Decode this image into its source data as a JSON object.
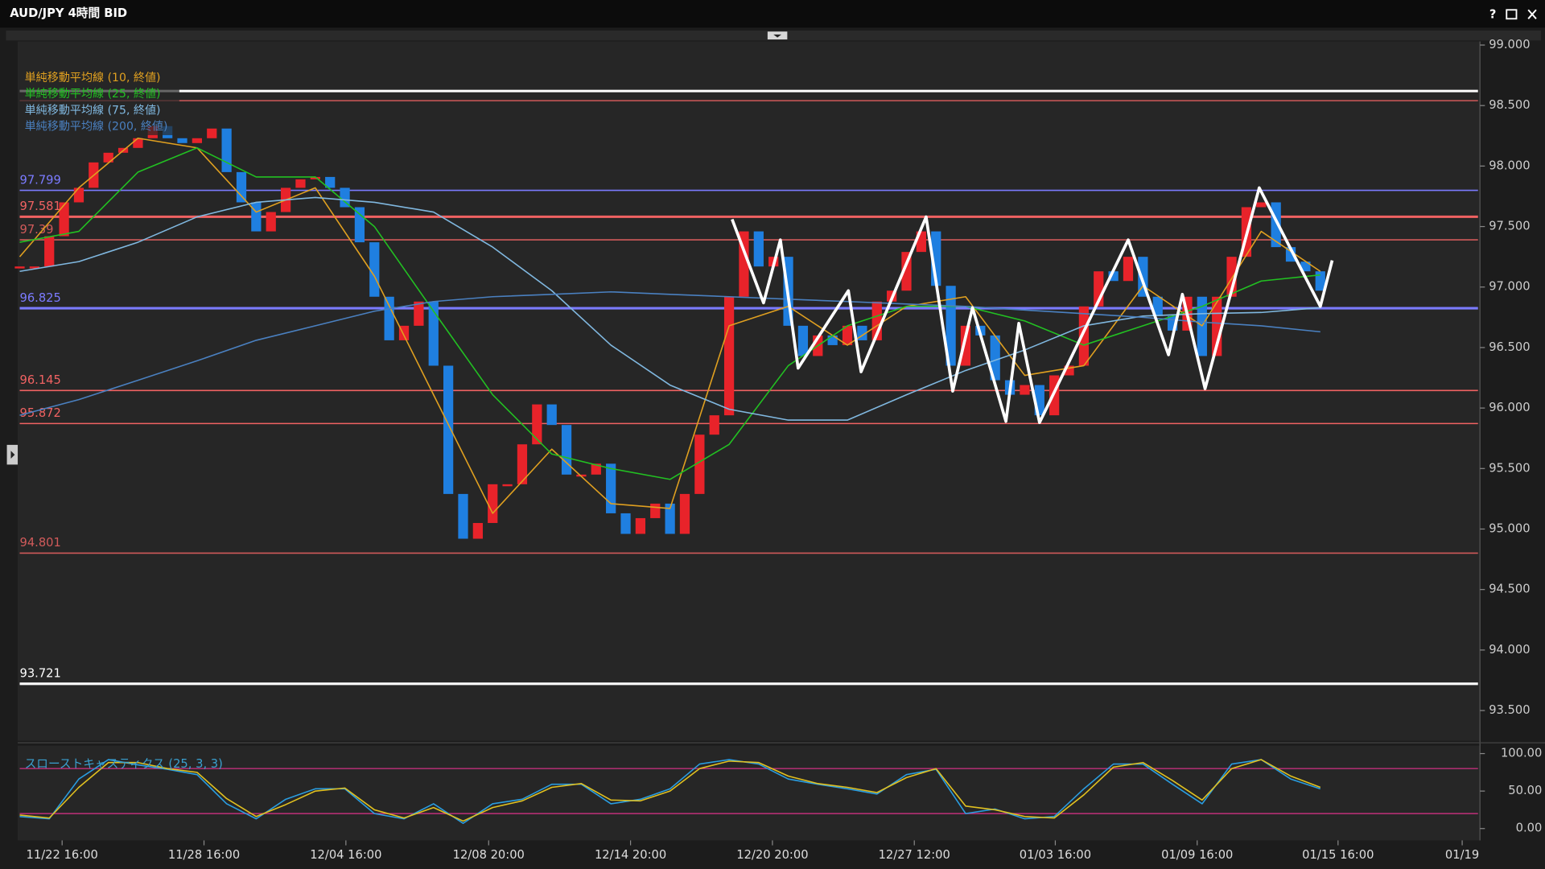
{
  "window": {
    "title": "AUD/JPY 4時間 BID",
    "help": "?"
  },
  "chart_data": [
    {
      "type": "candlestick",
      "values": [
        97.17,
        97.17,
        97.42,
        97.7,
        97.82,
        98.03,
        98.11,
        98.15,
        98.23,
        98.33,
        98.23,
        98.19,
        98.23,
        98.31,
        97.95,
        97.7,
        97.46,
        97.62,
        97.82,
        97.89,
        97.91,
        97.82,
        97.66,
        97.37,
        96.92,
        96.56,
        96.68,
        96.88,
        96.35,
        95.29,
        94.92,
        95.05,
        95.37,
        95.37,
        95.7,
        96.03,
        95.86,
        95.45,
        95.45,
        95.54,
        95.13,
        94.96,
        95.09,
        95.21,
        94.96,
        95.29,
        95.78,
        95.94,
        96.92,
        97.46,
        97.17,
        97.25,
        96.68,
        96.43,
        96.6,
        96.52,
        96.68,
        96.56,
        96.88,
        96.97,
        97.29,
        97.46,
        97.01,
        96.35,
        96.68,
        96.6,
        96.23,
        96.11,
        96.19,
        95.94,
        96.27,
        96.35,
        96.84,
        97.13,
        97.05,
        97.25,
        96.92,
        96.76,
        96.64,
        96.92,
        96.43,
        96.92,
        97.25,
        97.66,
        97.7,
        97.33,
        97.21,
        97.13,
        96.97
      ],
      "up_color": "#e8232a",
      "down_color": "#1f7fe0",
      "xlim": [
        0,
        98.67
      ],
      "ylim": [
        93.25,
        99.03
      ],
      "xticks": [
        {
          "value": 2.87,
          "label": "11/22 16:00"
        },
        {
          "value": 12.47,
          "label": "11/28 16:00"
        },
        {
          "value": 22.07,
          "label": "12/04 16:00"
        },
        {
          "value": 31.73,
          "label": "12/08 20:00"
        },
        {
          "value": 41.33,
          "label": "12/14 20:00"
        },
        {
          "value": 50.93,
          "label": "12/20 20:00"
        },
        {
          "value": 60.53,
          "label": "12/27 12:00"
        },
        {
          "value": 70.07,
          "label": "01/03 16:00"
        },
        {
          "value": 79.67,
          "label": "01/09 16:00"
        },
        {
          "value": 89.2,
          "label": "01/15 16:00"
        },
        {
          "value": 97.6,
          "label": "01/19"
        }
      ],
      "yticks": [
        {
          "value": 93.5,
          "label": "93.500"
        },
        {
          "value": 94,
          "label": "94.000"
        },
        {
          "value": 94.5,
          "label": "94.500"
        },
        {
          "value": 95,
          "label": "95.000"
        },
        {
          "value": 95.5,
          "label": "95.500"
        },
        {
          "value": 96,
          "label": "96.000"
        },
        {
          "value": 96.5,
          "label": "96.500"
        },
        {
          "value": 97,
          "label": "97.000"
        },
        {
          "value": 97.5,
          "label": "97.500"
        },
        {
          "value": 98,
          "label": "98.000"
        },
        {
          "value": 98.5,
          "label": "98.500"
        },
        {
          "value": 99,
          "label": "99.000"
        }
      ],
      "series": [
        {
          "name": "単純移動平均線 (10, 終値)",
          "color": "#e0a020",
          "x": [
            0,
            4,
            8,
            12,
            16,
            20,
            24,
            28,
            32,
            36,
            40,
            44,
            48,
            52,
            56,
            60,
            64,
            68,
            72,
            76,
            80,
            84,
            88
          ],
          "values": [
            97.25,
            97.82,
            98.23,
            98.15,
            97.62,
            97.82,
            97.09,
            96.11,
            95.13,
            95.66,
            95.21,
            95.17,
            96.68,
            96.84,
            96.52,
            96.84,
            96.92,
            96.27,
            96.35,
            97.01,
            96.68,
            97.46,
            97.13
          ]
        },
        {
          "name": "単純移動平均線 (25, 終値)",
          "color": "#22c022",
          "x": [
            0,
            4,
            8,
            12,
            16,
            20,
            24,
            28,
            32,
            36,
            40,
            44,
            48,
            52,
            56,
            60,
            64,
            68,
            72,
            76,
            80,
            84,
            88
          ],
          "values": [
            97.37,
            97.46,
            97.95,
            98.15,
            97.91,
            97.91,
            97.5,
            96.8,
            96.11,
            95.62,
            95.5,
            95.41,
            95.7,
            96.35,
            96.68,
            96.84,
            96.84,
            96.72,
            96.52,
            96.68,
            96.84,
            97.05,
            97.1
          ]
        },
        {
          "name": "単純移動平均線 (75, 終値)",
          "color": "#80b8e0",
          "x": [
            0,
            4,
            8,
            12,
            16,
            20,
            24,
            28,
            32,
            36,
            40,
            44,
            48,
            52,
            56,
            60,
            64,
            68,
            72,
            76,
            80,
            84,
            88
          ],
          "values": [
            97.13,
            97.21,
            97.37,
            97.58,
            97.7,
            97.74,
            97.7,
            97.62,
            97.33,
            96.97,
            96.52,
            96.19,
            95.99,
            95.9,
            95.9,
            96.11,
            96.31,
            96.48,
            96.68,
            96.76,
            96.78,
            96.79,
            96.83
          ]
        },
        {
          "name": "単純移動平均線 (200, 終値)",
          "color": "#4a80c0",
          "x": [
            0,
            4,
            8,
            12,
            16,
            20,
            24,
            28,
            32,
            36,
            40,
            44,
            48,
            52,
            56,
            60,
            64,
            68,
            72,
            76,
            80,
            84,
            88
          ],
          "values": [
            95.94,
            96.07,
            96.23,
            96.39,
            96.56,
            96.68,
            96.8,
            96.88,
            96.92,
            96.94,
            96.96,
            96.94,
            96.92,
            96.9,
            96.88,
            96.86,
            96.84,
            96.81,
            96.78,
            96.75,
            96.71,
            96.68,
            96.63
          ]
        }
      ],
      "zigzag": {
        "color": "#ffffff",
        "x": [
          48.2,
          50.33,
          51.47,
          52.67,
          56.07,
          56.93,
          61.33,
          63.13,
          64.47,
          66.73,
          67.6,
          69,
          75,
          77.73,
          78.67,
          80.2,
          83.87,
          88,
          88.8
        ],
        "values": [
          97.56,
          96.87,
          97.39,
          96.33,
          96.97,
          96.3,
          97.58,
          96.14,
          96.83,
          95.89,
          96.7,
          95.88,
          97.39,
          96.44,
          96.94,
          96.16,
          97.82,
          96.84,
          97.22
        ]
      },
      "levels": [
        {
          "value": 97.799,
          "color": "#7b7bff"
        },
        {
          "value": 97.581,
          "color": "#f06262"
        },
        {
          "value": 97.39,
          "color": "#d05a5a"
        },
        {
          "value": 96.825,
          "color": "#7b7bff"
        },
        {
          "value": 96.145,
          "color": "#f06262"
        },
        {
          "value": 95.872,
          "color": "#f06262"
        },
        {
          "value": 94.801,
          "color": "#d05a5a"
        },
        {
          "value": 93.721,
          "color": "#ffffff"
        }
      ],
      "lines": [
        {
          "value": 98.62,
          "color": "#ffffff"
        },
        {
          "value": 98.54,
          "color": "#d05a5a"
        }
      ]
    },
    {
      "type": "line",
      "title": "スローストキャスティクス (25, 3, 3)",
      "xlim": [
        0,
        98.67
      ],
      "ylim": [
        -15.8,
        110.5
      ],
      "yticks": [
        {
          "value": 0,
          "label": "0.00"
        },
        {
          "value": 50,
          "label": "50.00"
        },
        {
          "value": 100,
          "label": "100.00"
        }
      ],
      "levels": [
        {
          "value": 20,
          "color": "#c0307a"
        },
        {
          "value": 80,
          "color": "#c0307a"
        }
      ],
      "series": [
        {
          "color": "#2a9de0",
          "x": [
            0,
            2,
            4,
            6,
            8,
            10,
            12,
            14,
            16,
            18,
            20,
            22,
            24,
            26,
            28,
            30,
            32,
            34,
            36,
            38,
            40,
            42,
            44,
            46,
            48,
            50,
            52,
            54,
            56,
            58,
            60,
            62,
            64,
            66,
            68,
            70,
            72,
            74,
            76,
            78,
            80,
            82,
            84,
            86,
            88
          ],
          "values": [
            16,
            13,
            66,
            92,
            85,
            79,
            72,
            33,
            13,
            39,
            53,
            53,
            20,
            13,
            33,
            7,
            33,
            39,
            59,
            59,
            33,
            39,
            53,
            86,
            92,
            86,
            66,
            59,
            53,
            46,
            72,
            79,
            20,
            26,
            13,
            16,
            53,
            86,
            86,
            59,
            33,
            86,
            92,
            66,
            53
          ]
        },
        {
          "color": "#e0c020",
          "x": [
            0,
            2,
            4,
            6,
            8,
            10,
            12,
            14,
            16,
            18,
            20,
            22,
            24,
            26,
            28,
            30,
            32,
            34,
            36,
            38,
            40,
            42,
            44,
            46,
            48,
            50,
            52,
            54,
            56,
            58,
            60,
            62,
            64,
            66,
            68,
            70,
            72,
            74,
            76,
            78,
            80,
            82,
            84,
            86,
            88
          ],
          "values": [
            18,
            14,
            55,
            88,
            88,
            80,
            75,
            40,
            16,
            32,
            50,
            54,
            25,
            14,
            28,
            10,
            28,
            37,
            55,
            60,
            38,
            37,
            50,
            80,
            90,
            88,
            70,
            60,
            55,
            48,
            68,
            80,
            30,
            25,
            16,
            14,
            45,
            82,
            88,
            64,
            38,
            80,
            92,
            70,
            55
          ]
        }
      ]
    }
  ]
}
